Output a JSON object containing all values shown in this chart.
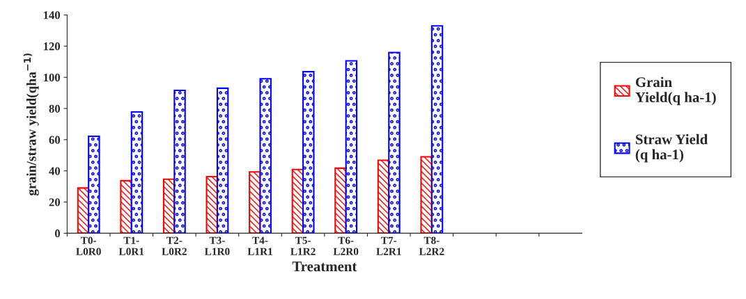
{
  "chart_data": {
    "type": "bar",
    "xlabel": "Treatment",
    "ylabel": "grain/straw yield(qha$^{−1)}$",
    "categories": [
      "T0-\nL0R0",
      "T1-\nL0R1",
      "T2-\nL0R2",
      "T3-\nL1R0",
      "T4-\nL1R1",
      "T5-\nL1R2",
      "T6-\nL2R0",
      "T7-\nL2R1",
      "T8-\nL2R2",
      null,
      null,
      null
    ],
    "series": [
      {
        "name": "Grain\nYield(q ha-1)",
        "color": "#ff0000",
        "values": [
          29,
          33.7,
          34.6,
          36.3,
          39.3,
          40.9,
          41.7,
          46.8,
          49,
          null,
          null,
          null
        ]
      },
      {
        "name": "Straw Yield\n(q ha-1)",
        "color": "#0000ff",
        "values": [
          62.2,
          77.8,
          91.6,
          93,
          99.1,
          103.6,
          110.6,
          115.9,
          133,
          null,
          null,
          null
        ]
      }
    ],
    "ylim": [
      0,
      140
    ],
    "yticks": [
      0,
      20,
      40,
      60,
      80,
      100,
      120,
      140
    ],
    "grid": false,
    "legend": "right"
  }
}
